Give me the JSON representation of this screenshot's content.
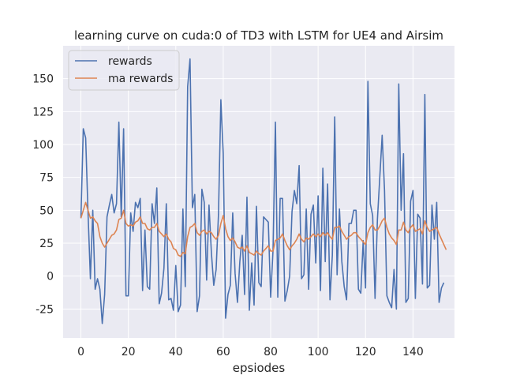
{
  "chart_data": {
    "type": "line",
    "title": "learning curve on cuda:0 of TD3 with LSTM for UE4 and Airsim",
    "xlabel": "epsiodes",
    "ylabel": "",
    "xlim": [
      -7.5,
      157.5
    ],
    "ylim": [
      -47,
      175
    ],
    "xticks": [
      0,
      20,
      40,
      60,
      80,
      100,
      120,
      140
    ],
    "yticks": [
      -25,
      0,
      25,
      50,
      75,
      100,
      125,
      150
    ],
    "grid": true,
    "legend_position": "top-left",
    "background": "#eaeaf2",
    "series": [
      {
        "name": "rewards",
        "color": "#4c72b0",
        "values": [
          44,
          112,
          105,
          48,
          -2,
          50,
          -10,
          -2,
          -10,
          -36,
          -14,
          45,
          54,
          62,
          48,
          55,
          117,
          45,
          112,
          -15,
          -15,
          48,
          34,
          56,
          52,
          59,
          -11,
          35,
          -8,
          -10,
          55,
          40,
          67,
          -21,
          -13,
          6,
          55,
          -18,
          -17,
          -26,
          8,
          -27,
          -22,
          51,
          -8,
          144,
          165,
          52,
          62,
          -27,
          -15,
          66,
          56,
          -3,
          54,
          18,
          -7,
          5,
          47,
          134,
          93,
          -32,
          -14,
          -7,
          48,
          2,
          -20,
          11,
          31,
          -14,
          60,
          -26,
          10,
          -22,
          53,
          -5,
          -8,
          45,
          43,
          41,
          -16,
          20,
          117,
          -16,
          59,
          59,
          -19,
          -11,
          0,
          49,
          65,
          55,
          84,
          -2,
          1,
          51,
          -10,
          47,
          54,
          10,
          61,
          -11,
          82,
          11,
          70,
          -18,
          16,
          121,
          1,
          51,
          11,
          -8,
          -18,
          40,
          40,
          50,
          50,
          -10,
          -13,
          27,
          -9,
          148,
          55,
          46,
          -17,
          43,
          75,
          107,
          65,
          -15,
          -20,
          -24,
          5,
          -25,
          146,
          50,
          93,
          -20,
          -17,
          57,
          65,
          -17,
          47,
          44,
          -6,
          138,
          -9,
          -7,
          54,
          28,
          56,
          -20,
          -9,
          -5
        ]
      },
      {
        "name": "ma rewards",
        "color": "#dd8452",
        "values": [
          44,
          50,
          56,
          50,
          44,
          45,
          42,
          40,
          30,
          25,
          22,
          25,
          28,
          31,
          32,
          35,
          43,
          44,
          50,
          40,
          38,
          39,
          38,
          41,
          42,
          45,
          40,
          40,
          36,
          35,
          37,
          37,
          40,
          34,
          32,
          30,
          32,
          28,
          26,
          21,
          20,
          16,
          15,
          18,
          17,
          30,
          37,
          38,
          40,
          33,
          31,
          34,
          35,
          32,
          34,
          33,
          30,
          28,
          31,
          40,
          46,
          36,
          30,
          27,
          29,
          26,
          22,
          21,
          22,
          19,
          23,
          18,
          17,
          16,
          19,
          17,
          16,
          19,
          21,
          23,
          19,
          19,
          27,
          28,
          29,
          32,
          27,
          23,
          20,
          23,
          25,
          28,
          32,
          28,
          26,
          29,
          28,
          30,
          32,
          30,
          32,
          30,
          33,
          31,
          33,
          30,
          28,
          37,
          37,
          38,
          34,
          31,
          28,
          30,
          31,
          33,
          33,
          30,
          28,
          26,
          24,
          33,
          37,
          39,
          35,
          35,
          38,
          42,
          44,
          37,
          32,
          29,
          27,
          24,
          35,
          35,
          41,
          35,
          33,
          37,
          39,
          34,
          35,
          36,
          32,
          42,
          37,
          34,
          35,
          36,
          37,
          32,
          28,
          24,
          20
        ]
      }
    ]
  }
}
